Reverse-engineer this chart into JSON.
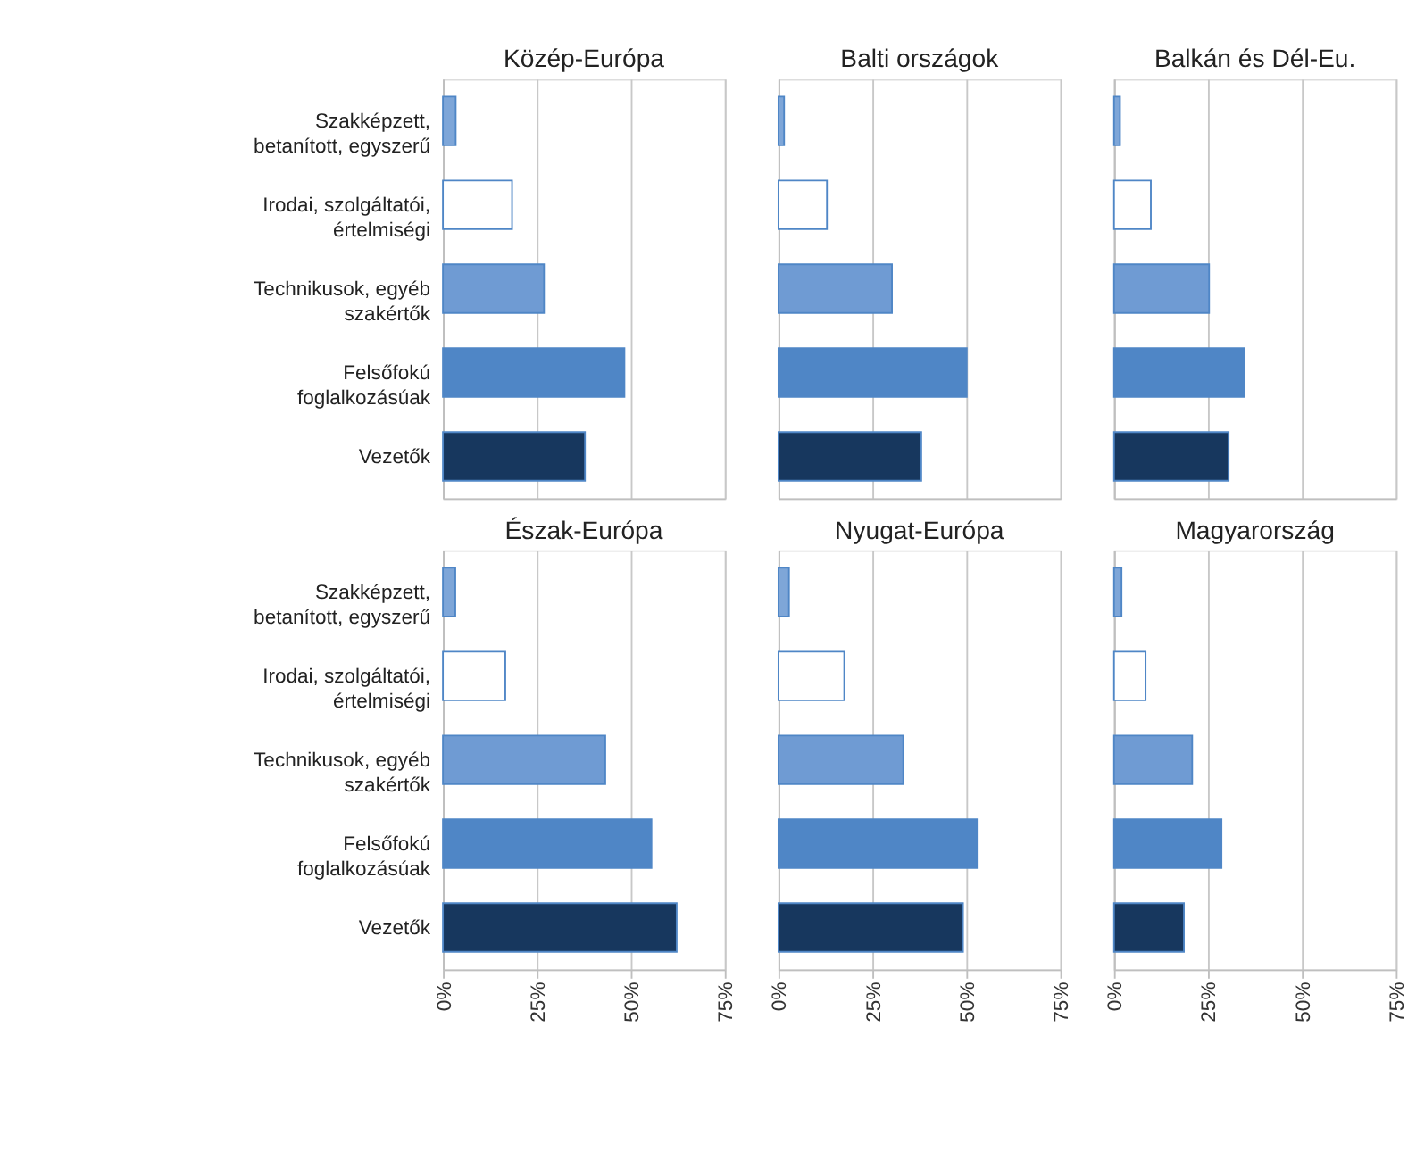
{
  "chart_data": [
    {
      "type": "bar",
      "orientation": "horizontal",
      "title": "Közép-Európa",
      "categories": [
        "Szakképzett, betanított, egyszerű",
        "Irodai, szolgáltatói, értelmiségi",
        "Technikusok, egyéb szakértők",
        "Felsőfokú foglalkozásúak",
        "Vezetők"
      ],
      "values": [
        3.4,
        18.4,
        26.9,
        48.3,
        37.8
      ],
      "colors": [
        "#7ea6d8",
        "#ffffff",
        "#6f9bd3",
        "#4f86c6",
        "#17375e"
      ],
      "xlim": [
        0,
        75
      ],
      "xticks": [
        {
          "value": 0,
          "label": null
        },
        {
          "value": 25,
          "label": null
        },
        {
          "value": 50,
          "label": null
        },
        {
          "value": 75,
          "label": null
        }
      ],
      "grid": "x",
      "tick_labels": "y"
    },
    {
      "type": "bar",
      "orientation": "horizontal",
      "title": "Balti országok",
      "categories": [
        null,
        null,
        null,
        null,
        null
      ],
      "values": [
        1.5,
        12.9,
        30.2,
        50.1,
        38.0
      ],
      "colors": [
        "#7ea6d8",
        "#ffffff",
        "#6f9bd3",
        "#4f86c6",
        "#17375e"
      ],
      "xlim": [
        0,
        75
      ],
      "xticks": [
        {
          "value": 0,
          "label": null
        },
        {
          "value": 25,
          "label": null
        },
        {
          "value": 50,
          "label": null
        },
        {
          "value": 75,
          "label": null
        }
      ],
      "grid": "x",
      "tick_labels": false
    },
    {
      "type": "bar",
      "orientation": "horizontal",
      "title": "Balkán és Dél-Eu.",
      "categories": [
        null,
        null,
        null,
        null,
        null
      ],
      "values": [
        1.6,
        9.8,
        25.3,
        34.7,
        30.5
      ],
      "colors": [
        "#7ea6d8",
        "#ffffff",
        "#6f9bd3",
        "#4f86c6",
        "#17375e"
      ],
      "xlim": [
        0,
        75
      ],
      "xticks": [
        {
          "value": 0,
          "label": null
        },
        {
          "value": 25,
          "label": null
        },
        {
          "value": 50,
          "label": null
        },
        {
          "value": 75,
          "label": null
        }
      ],
      "grid": "x",
      "tick_labels": false
    },
    {
      "type": "bar",
      "orientation": "horizontal",
      "title": "Észak-Európa",
      "categories": [
        "Szakképzett, betanított, egyszerű",
        "Irodai, szolgáltatói, értelmiségi",
        "Technikusok, egyéb szakértők",
        "Felsőfokú foglalkozásúak",
        "Vezetők"
      ],
      "values": [
        3.3,
        16.6,
        43.2,
        55.5,
        62.2
      ],
      "colors": [
        "#7ea6d8",
        "#ffffff",
        "#6f9bd3",
        "#4f86c6",
        "#17375e"
      ],
      "xlim": [
        0,
        75
      ],
      "xticks": [
        {
          "value": 0,
          "label": "0%"
        },
        {
          "value": 25,
          "label": "25%"
        },
        {
          "value": 50,
          "label": "50%"
        },
        {
          "value": 75,
          "label": "75%"
        }
      ],
      "grid": "x"
    },
    {
      "type": "bar",
      "orientation": "horizontal",
      "title": "Nyugat-Európa",
      "categories": [
        null,
        null,
        null,
        null,
        null
      ],
      "values": [
        2.8,
        17.5,
        33.2,
        52.8,
        49.1
      ],
      "colors": [
        "#7ea6d8",
        "#ffffff",
        "#6f9bd3",
        "#4f86c6",
        "#17375e"
      ],
      "xlim": [
        0,
        75
      ],
      "xticks": [
        {
          "value": 0,
          "label": "0%"
        },
        {
          "value": 25,
          "label": "25%"
        },
        {
          "value": 50,
          "label": "50%"
        },
        {
          "value": 75,
          "label": "75%"
        }
      ],
      "grid": "x",
      "tick_labels": "x"
    },
    {
      "type": "bar",
      "orientation": "horizontal",
      "title": "Magyarország",
      "categories": [
        null,
        null,
        null,
        null,
        null
      ],
      "values": [
        2.0,
        8.4,
        20.8,
        28.6,
        18.6
      ],
      "colors": [
        "#7ea6d8",
        "#ffffff",
        "#6f9bd3",
        "#4f86c6",
        "#17375e"
      ],
      "xlim": [
        0,
        75
      ],
      "xticks": [
        {
          "value": 0,
          "label": "0%"
        },
        {
          "value": 25,
          "label": "25%"
        },
        {
          "value": 50,
          "label": "50%"
        },
        {
          "value": 75,
          "label": "75%"
        }
      ],
      "grid": "x",
      "tick_labels": "x"
    }
  ]
}
